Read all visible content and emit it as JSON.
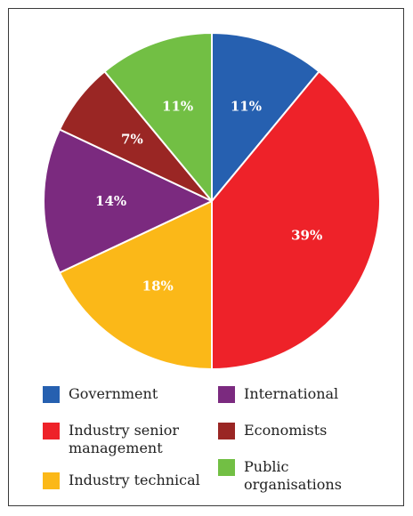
{
  "chart_data": {
    "type": "pie",
    "slices": [
      {
        "label": "Government",
        "value": 11,
        "value_label": "11%",
        "color": "#2660b0"
      },
      {
        "label": "Industry senior management",
        "value": 39,
        "value_label": "39%",
        "color": "#ee2229"
      },
      {
        "label": "Industry technical",
        "value": 18,
        "value_label": "18%",
        "color": "#fbb818"
      },
      {
        "label": "International",
        "value": 14,
        "value_label": "14%",
        "color": "#7b2a7f"
      },
      {
        "label": "Economists",
        "value": 7,
        "value_label": "7%",
        "color": "#9a2624"
      },
      {
        "label": "Public organisations",
        "value": 11,
        "value_label": "11%",
        "color": "#72bf44"
      }
    ],
    "legend": {
      "placement": "bottom",
      "items": [
        {
          "text": "Government",
          "color": "#2660b0"
        },
        {
          "text": "Industry senior\nmanagement",
          "color": "#ee2229"
        },
        {
          "text": "Industry technical",
          "color": "#fbb818"
        },
        {
          "text": "International",
          "color": "#7b2a7f"
        },
        {
          "text": "Economists",
          "color": "#9a2624"
        },
        {
          "text": "Public\norganisations",
          "color": "#72bf44"
        }
      ]
    }
  }
}
